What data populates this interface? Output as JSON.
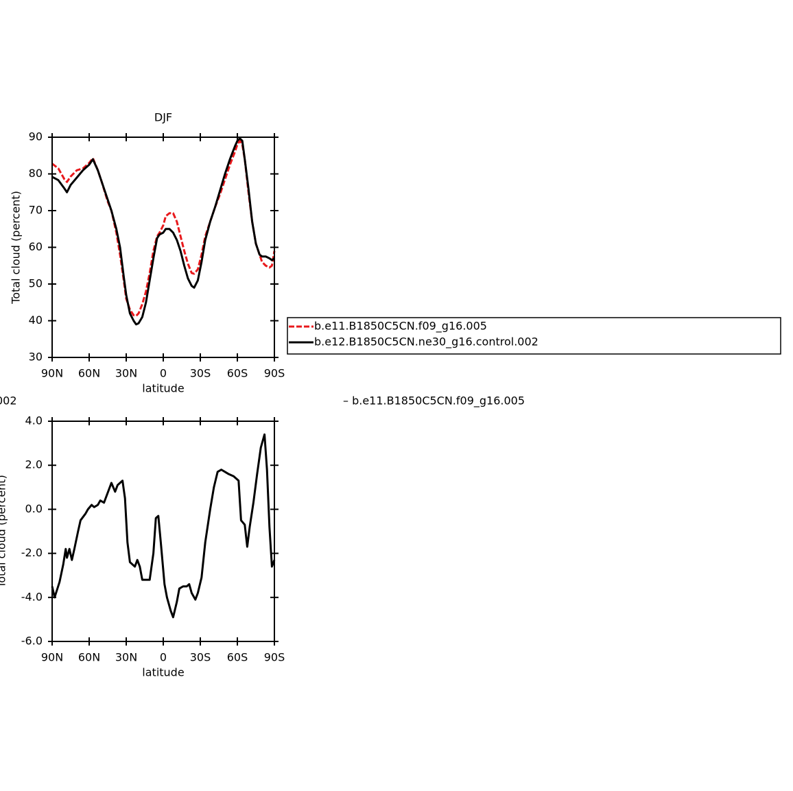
{
  "chart_data": [
    {
      "type": "line",
      "title": "DJF",
      "xlabel": "latitude",
      "ylabel": "Total cloud (percent)",
      "xlim": [
        90,
        -90
      ],
      "xticks": [
        {
          "value": 90,
          "label": "90N"
        },
        {
          "value": 60,
          "label": "60N"
        },
        {
          "value": 30,
          "label": "30N"
        },
        0,
        {
          "value": -30,
          "label": "30S"
        },
        {
          "value": -60,
          "label": "60S"
        },
        {
          "value": -90,
          "label": "90S"
        }
      ],
      "ylim": [
        30,
        90
      ],
      "yticks": [
        30,
        40,
        50,
        60,
        70,
        80,
        90
      ],
      "legend": "right",
      "x": [
        90,
        85,
        80,
        78,
        75,
        70,
        65,
        60,
        57,
        53,
        50,
        45,
        42,
        38,
        35,
        32,
        30,
        27,
        24,
        22,
        20,
        17,
        14,
        11,
        8,
        5,
        3,
        0,
        -2,
        -5,
        -8,
        -11,
        -14,
        -17,
        -20,
        -23,
        -25,
        -28,
        -31,
        -34,
        -38,
        -42,
        -46,
        -50,
        -54,
        -58,
        -60,
        -62,
        -64,
        -66,
        -69,
        -72,
        -75,
        -78,
        -80,
        -83,
        -86,
        -88,
        -90
      ],
      "series": [
        {
          "name": "b.e11.B1850C5CN.f09_g16.005",
          "color": "#e8191c",
          "dashed": true,
          "values": [
            82.8,
            81.5,
            78.5,
            77.8,
            79.3,
            81,
            81.5,
            83,
            84.3,
            81,
            78,
            72.5,
            70,
            64,
            58,
            51,
            46,
            43,
            41.5,
            41.3,
            42,
            44.5,
            48,
            53,
            59,
            63,
            64,
            66,
            68.5,
            69.3,
            69.3,
            67,
            63,
            59,
            55.5,
            53,
            52.8,
            54,
            58,
            63,
            67,
            71,
            74.5,
            78.5,
            82.5,
            86,
            88,
            89,
            88,
            84,
            75,
            67,
            61,
            58,
            56,
            55,
            54.5,
            55,
            59
          ]
        },
        {
          "name": "b.e12.B1850C5CN.ne30_g16.control.002",
          "color": "#000000",
          "dashed": false,
          "values": [
            79.2,
            78.3,
            76,
            75,
            77,
            79,
            81,
            82.5,
            84,
            81,
            78,
            73,
            70,
            65,
            60,
            52,
            47,
            42,
            40,
            39,
            39.3,
            41,
            45,
            51,
            57,
            62.5,
            63.5,
            64,
            65,
            65,
            64,
            62,
            59,
            55,
            51.5,
            49.5,
            49,
            51,
            56,
            62,
            67,
            71,
            75.5,
            80,
            84,
            87.5,
            89,
            89.7,
            89,
            84,
            76,
            67,
            61,
            58,
            57.5,
            57.5,
            57,
            56.5,
            57
          ]
        }
      ]
    },
    {
      "type": "line",
      "title_parts": [
        "002",
        "– b.e11.B1850C5CN.f09_g16.005"
      ],
      "xlabel": "latitude",
      "ylabel": "Total cloud (percent)",
      "xlim": [
        90,
        -90
      ],
      "xticks": [
        {
          "value": 90,
          "label": "90N"
        },
        {
          "value": 60,
          "label": "60N"
        },
        {
          "value": 30,
          "label": "30N"
        },
        0,
        {
          "value": -30,
          "label": "30S"
        },
        {
          "value": -60,
          "label": "60S"
        },
        {
          "value": -90,
          "label": "90S"
        }
      ],
      "ylim": [
        -6,
        4
      ],
      "yticks": [
        {
          "value": -6,
          "label": "-6.0"
        },
        {
          "value": -4,
          "label": "-4.0"
        },
        {
          "value": -2,
          "label": "-2.0"
        },
        {
          "value": 0,
          "label": "0.0"
        },
        {
          "value": 2,
          "label": "2.0"
        },
        {
          "value": 4,
          "label": "4.0"
        }
      ],
      "color": "#000000",
      "x": [
        90,
        88,
        84,
        81,
        79,
        78,
        76,
        74,
        72,
        69,
        67,
        63,
        61,
        58,
        56,
        53,
        51,
        48,
        44,
        42,
        39,
        37,
        33,
        31,
        29,
        27,
        23,
        21,
        19,
        17,
        14,
        11,
        8,
        6,
        4,
        2,
        -1,
        -3,
        -6,
        -8,
        -11,
        -13,
        -16,
        -19,
        -21,
        -23,
        -26,
        -28,
        -31,
        -34,
        -38,
        -41,
        -44,
        -47,
        -50,
        -53,
        -57,
        -61,
        -63,
        -66,
        -68,
        -70,
        -73,
        -76,
        -79,
        -82,
        -84,
        -86,
        -88,
        -90
      ],
      "values": [
        -3.5,
        -4.0,
        -3.3,
        -2.5,
        -1.8,
        -2.2,
        -1.8,
        -2.3,
        -1.8,
        -1.0,
        -0.5,
        -0.2,
        0,
        0.2,
        0.1,
        0.2,
        0.4,
        0.3,
        0.9,
        1.2,
        0.8,
        1.1,
        1.3,
        0.5,
        -1.5,
        -2.4,
        -2.6,
        -2.3,
        -2.6,
        -3.2,
        -3.2,
        -3.2,
        -2.0,
        -0.4,
        -0.3,
        -1.5,
        -3.4,
        -4.0,
        -4.6,
        -4.9,
        -4.2,
        -3.6,
        -3.5,
        -3.5,
        -3.4,
        -3.8,
        -4.1,
        -3.8,
        -3.1,
        -1.5,
        0,
        1.0,
        1.7,
        1.8,
        1.7,
        1.6,
        1.5,
        1.3,
        -0.5,
        -0.7,
        -1.7,
        -0.8,
        0.3,
        1.6,
        2.8,
        3.4,
        1.8,
        -0.8,
        -2.6,
        -2.3
      ]
    }
  ]
}
